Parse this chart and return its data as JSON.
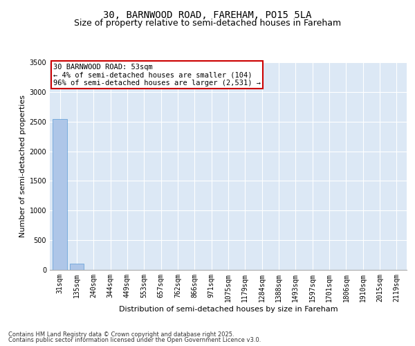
{
  "title_line1": "30, BARNWOOD ROAD, FAREHAM, PO15 5LA",
  "title_line2": "Size of property relative to semi-detached houses in Fareham",
  "xlabel": "Distribution of semi-detached houses by size in Fareham",
  "ylabel": "Number of semi-detached properties",
  "categories": [
    "31sqm",
    "135sqm",
    "240sqm",
    "344sqm",
    "449sqm",
    "553sqm",
    "657sqm",
    "762sqm",
    "866sqm",
    "971sqm",
    "1075sqm",
    "1179sqm",
    "1284sqm",
    "1388sqm",
    "1493sqm",
    "1597sqm",
    "1701sqm",
    "1806sqm",
    "1910sqm",
    "2015sqm",
    "2119sqm"
  ],
  "values": [
    2540,
    104,
    0,
    0,
    0,
    0,
    0,
    0,
    0,
    0,
    0,
    0,
    0,
    0,
    0,
    0,
    0,
    0,
    0,
    0,
    0
  ],
  "bar_color": "#aec6e8",
  "bar_edge_color": "#5b9bd5",
  "annotation_text_line1": "30 BARNWOOD ROAD: 53sqm",
  "annotation_text_line2": "← 4% of semi-detached houses are smaller (104)",
  "annotation_text_line3": "96% of semi-detached houses are larger (2,531) →",
  "annotation_box_color": "#cc0000",
  "ylim": [
    0,
    3500
  ],
  "yticks": [
    0,
    500,
    1000,
    1500,
    2000,
    2500,
    3000,
    3500
  ],
  "background_color": "#dce8f5",
  "grid_color": "#ffffff",
  "footer_line1": "Contains HM Land Registry data © Crown copyright and database right 2025.",
  "footer_line2": "Contains public sector information licensed under the Open Government Licence v3.0.",
  "title_fontsize": 10,
  "subtitle_fontsize": 9,
  "ylabel_fontsize": 8,
  "xlabel_fontsize": 8,
  "tick_fontsize": 7,
  "annotation_fontsize": 7.5,
  "footer_fontsize": 6
}
